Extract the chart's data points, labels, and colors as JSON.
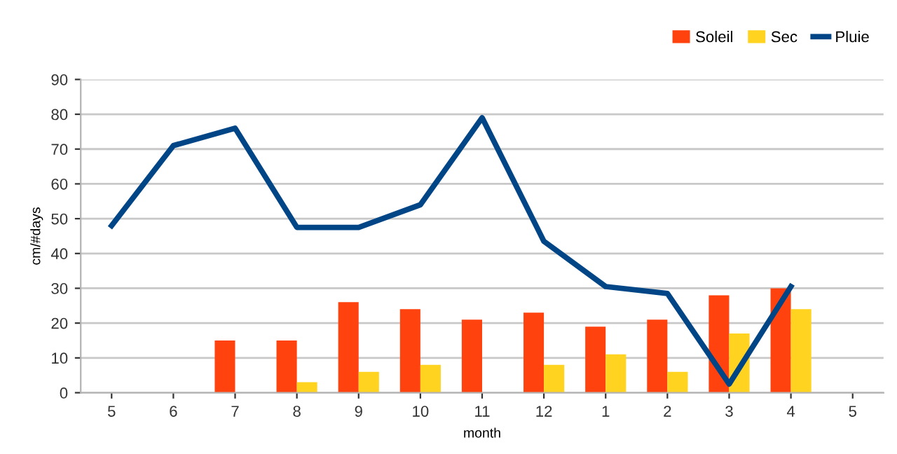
{
  "chart_data": {
    "type": "bar",
    "xlabel": "month",
    "ylabel": "cm/#days",
    "categories": [
      "5",
      "6",
      "7",
      "8",
      "9",
      "10",
      "11",
      "12",
      "1",
      "2",
      "3",
      "4",
      "5"
    ],
    "series": [
      {
        "name": "Soleil",
        "color": "#ff420e",
        "values": [
          null,
          null,
          15,
          15,
          26,
          24,
          21,
          23,
          19,
          21,
          28,
          30,
          null
        ]
      },
      {
        "name": "Sec",
        "color": "#ffd320",
        "values": [
          null,
          null,
          null,
          3,
          6,
          8,
          null,
          8,
          11,
          6,
          17,
          24,
          null
        ]
      },
      {
        "name": "Pluie",
        "type": "line",
        "color": "#004586",
        "values": [
          48,
          71,
          76,
          47.5,
          47.5,
          54,
          79,
          43.5,
          30.5,
          28.5,
          2.5,
          30.5,
          null
        ]
      }
    ],
    "ylim": [
      0,
      90
    ],
    "yticks": [
      0,
      10,
      20,
      30,
      40,
      50,
      60,
      70,
      80,
      90
    ],
    "grid": "y",
    "legend": "top right",
    "marker": "none",
    "line_style": "solid"
  }
}
